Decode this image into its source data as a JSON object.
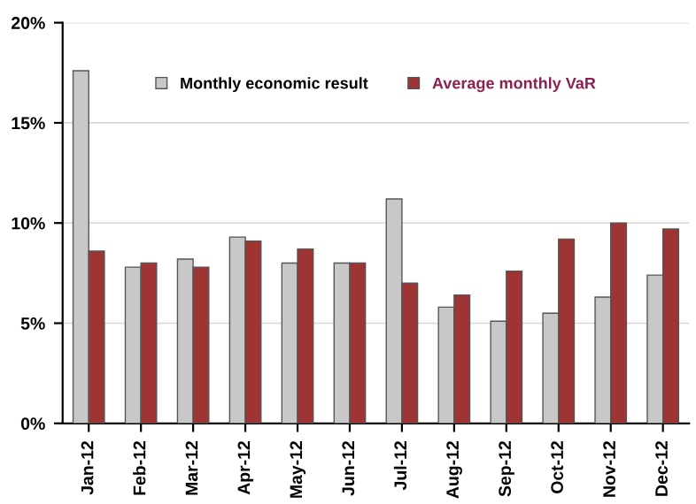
{
  "chart_data": {
    "type": "bar",
    "categories": [
      "Jan-12",
      "Feb-12",
      "Mar-12",
      "Apr-12",
      "May-12",
      "Jun-12",
      "Jul-12",
      "Aug-12",
      "Sep-12",
      "Oct-12",
      "Nov-12",
      "Dec-12"
    ],
    "series": [
      {
        "name": "Monthly economic result",
        "color": "#c8c8c8",
        "values": [
          17.6,
          7.8,
          8.2,
          9.3,
          8.0,
          8.0,
          11.2,
          5.8,
          5.1,
          5.5,
          6.3,
          7.4
        ]
      },
      {
        "name": "Average monthly VaR",
        "color": "#9e3434",
        "values": [
          8.6,
          8.0,
          7.8,
          9.1,
          8.7,
          8.0,
          7.0,
          6.4,
          7.6,
          9.2,
          10.0,
          9.7
        ]
      }
    ],
    "ylim": [
      0,
      20
    ],
    "yticks": [
      {
        "value": 0,
        "label": "0%"
      },
      {
        "value": 5,
        "label": "5%"
      },
      {
        "value": 10,
        "label": "10%"
      },
      {
        "value": 15,
        "label": "15%"
      },
      {
        "value": 20,
        "label": "20%"
      }
    ],
    "grid": "y",
    "legend": "top"
  }
}
